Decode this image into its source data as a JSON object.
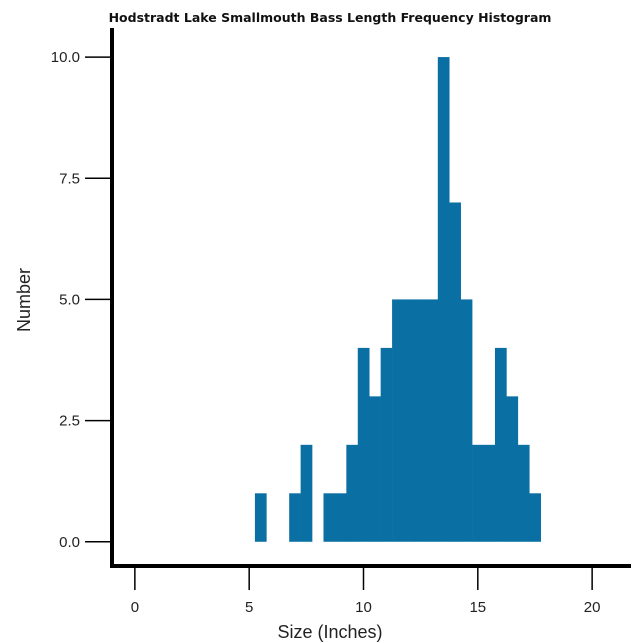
{
  "chart_data": {
    "type": "bar",
    "title": "Hodstradt Lake Smallmouth Bass Length Frequency Histogram",
    "xlabel": "Size (Inches)",
    "ylabel": "Number",
    "xlim": [
      -1,
      21.7
    ],
    "ylim": [
      -0.5,
      10.6
    ],
    "bin_width": 0.5,
    "x_ticks": [
      0,
      5,
      10,
      15,
      20
    ],
    "x_tick_labels": [
      "0",
      "5",
      "10",
      "15",
      "20"
    ],
    "y_ticks": [
      0,
      2.5,
      5,
      7.5,
      10
    ],
    "y_tick_labels": [
      "0.0",
      "2.5",
      "5.0",
      "7.5",
      "10.0"
    ],
    "bar_color": "#0a6fa3",
    "grid": false,
    "bins": [
      {
        "x0": 5.25,
        "x1": 5.75,
        "count": 1
      },
      {
        "x0": 6.75,
        "x1": 7.25,
        "count": 1
      },
      {
        "x0": 7.25,
        "x1": 7.75,
        "count": 2
      },
      {
        "x0": 8.25,
        "x1": 8.75,
        "count": 1
      },
      {
        "x0": 8.75,
        "x1": 9.25,
        "count": 1
      },
      {
        "x0": 9.25,
        "x1": 9.75,
        "count": 2
      },
      {
        "x0": 9.75,
        "x1": 10.25,
        "count": 4
      },
      {
        "x0": 10.25,
        "x1": 10.75,
        "count": 3
      },
      {
        "x0": 10.75,
        "x1": 11.25,
        "count": 4
      },
      {
        "x0": 11.25,
        "x1": 11.75,
        "count": 5
      },
      {
        "x0": 11.75,
        "x1": 12.25,
        "count": 5
      },
      {
        "x0": 12.25,
        "x1": 12.75,
        "count": 5
      },
      {
        "x0": 12.75,
        "x1": 13.25,
        "count": 5
      },
      {
        "x0": 13.25,
        "x1": 13.75,
        "count": 10
      },
      {
        "x0": 13.75,
        "x1": 14.25,
        "count": 7
      },
      {
        "x0": 14.25,
        "x1": 14.75,
        "count": 5
      },
      {
        "x0": 14.75,
        "x1": 15.25,
        "count": 2
      },
      {
        "x0": 15.25,
        "x1": 15.75,
        "count": 2
      },
      {
        "x0": 15.75,
        "x1": 16.25,
        "count": 4
      },
      {
        "x0": 16.25,
        "x1": 16.75,
        "count": 3
      },
      {
        "x0": 16.75,
        "x1": 17.25,
        "count": 2
      },
      {
        "x0": 17.25,
        "x1": 17.75,
        "count": 1
      }
    ]
  }
}
